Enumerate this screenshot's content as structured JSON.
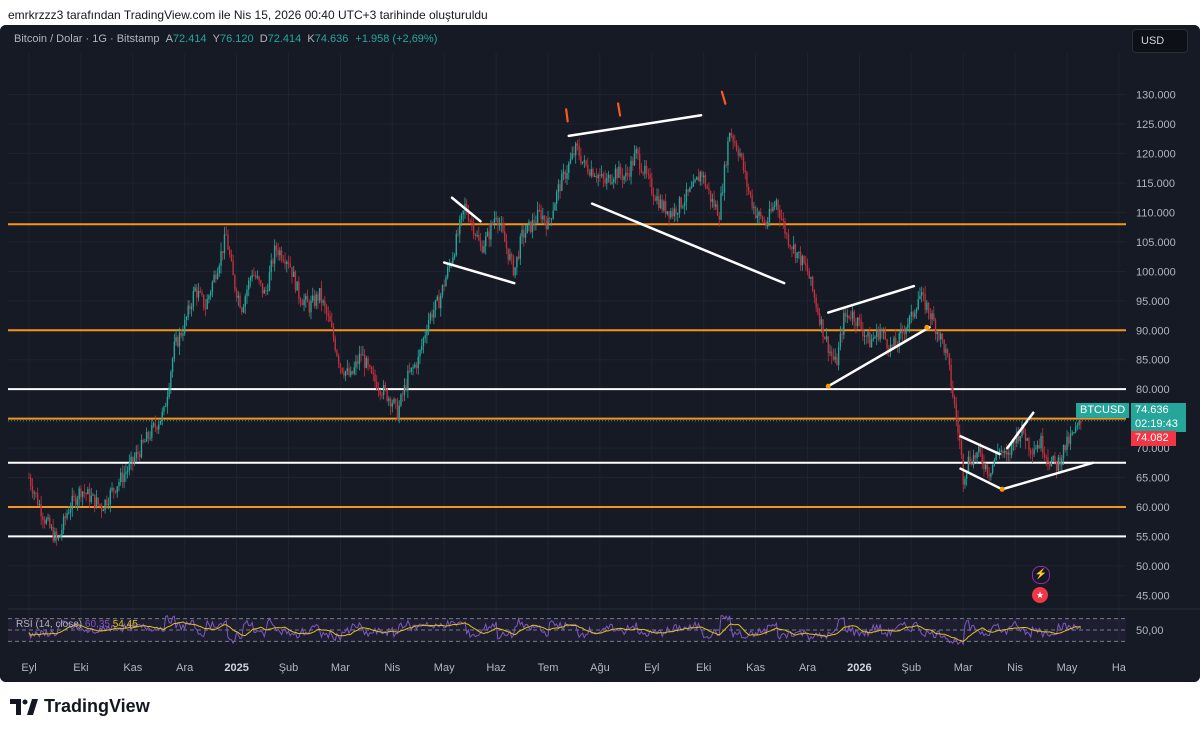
{
  "header": {
    "attribution": "emrkrzzz3 tarafından TradingView.com ile Nis 15, 2026 00:40 UTC+3 tarihinde oluşturuldu"
  },
  "legend": {
    "symbol": "Bitcoin / Dolar · 1G · Bitstamp",
    "open_label": "A",
    "open": "72.414",
    "high_label": "Y",
    "high": "76.120",
    "low_label": "D",
    "low": "72.414",
    "close_label": "K",
    "close": "74.636",
    "change": "+1.958 (+2,69%)"
  },
  "currency_button": "USD",
  "price_tags": {
    "symbol": "BTCUSD",
    "last": "74.636",
    "countdown": "02:19:43",
    "secondary": "74.082"
  },
  "rsi": {
    "label": "RSI (14, close)",
    "value_a": "60,35",
    "value_b": "54,45",
    "axis_label": "50,00"
  },
  "footer": {
    "brand": "TradingView"
  },
  "colors": {
    "background": "#161a25",
    "up": "#26a69a",
    "down": "#c2313d",
    "orange_line": "#f7931a",
    "white_line": "#ffffff",
    "rsi_line": "#7e57c2",
    "rsi_ma": "#e0c21a"
  },
  "chart_data": {
    "type": "candlestick",
    "y_axis_ticks": [
      "130.000",
      "125.000",
      "120.000",
      "115.000",
      "110.000",
      "105.000",
      "100.000",
      "95.000",
      "90.000",
      "85.000",
      "80.000",
      "75.000",
      "70.000",
      "65.000",
      "60.000",
      "55.000",
      "50.000",
      "45.000"
    ],
    "x_axis_ticks": [
      "Eyl",
      "Eki",
      "Kas",
      "Ara",
      "2025",
      "Şub",
      "Mar",
      "Nis",
      "May",
      "Haz",
      "Tem",
      "Ağu",
      "Eyl",
      "Eki",
      "Kas",
      "Ara",
      "2026",
      "Şub",
      "Mar",
      "Nis",
      "May",
      "Ha"
    ],
    "ylim": [
      42000,
      133000
    ],
    "horizontal_levels": [
      {
        "price": 108000,
        "color": "orange"
      },
      {
        "price": 90000,
        "color": "orange"
      },
      {
        "price": 80000,
        "color": "white"
      },
      {
        "price": 75000,
        "color": "orange"
      },
      {
        "price": 67500,
        "color": "white"
      },
      {
        "price": 60000,
        "color": "orange"
      },
      {
        "price": 55000,
        "color": "white"
      }
    ],
    "price_path": [
      [
        0,
        65000
      ],
      [
        0.3,
        58000
      ],
      [
        0.55,
        54000
      ],
      [
        0.75,
        59500
      ],
      [
        1.0,
        63000
      ],
      [
        1.4,
        60000
      ],
      [
        1.7,
        64000
      ],
      [
        1.95,
        67000
      ],
      [
        2.3,
        72000
      ],
      [
        2.6,
        76000
      ],
      [
        2.8,
        87000
      ],
      [
        3.0,
        91000
      ],
      [
        3.2,
        97000
      ],
      [
        3.4,
        94000
      ],
      [
        3.6,
        100000
      ],
      [
        3.8,
        106000
      ],
      [
        3.95,
        98000
      ],
      [
        4.1,
        94000
      ],
      [
        4.3,
        100000
      ],
      [
        4.55,
        96000
      ],
      [
        4.75,
        104000
      ],
      [
        5.0,
        102000
      ],
      [
        5.2,
        96000
      ],
      [
        5.4,
        94000
      ],
      [
        5.6,
        96000
      ],
      [
        5.8,
        91000
      ],
      [
        6.0,
        84000
      ],
      [
        6.2,
        82000
      ],
      [
        6.4,
        86000
      ],
      [
        6.6,
        82000
      ],
      [
        6.8,
        80000
      ],
      [
        7.0,
        78000
      ],
      [
        7.1,
        76000
      ],
      [
        7.3,
        82000
      ],
      [
        7.5,
        85000
      ],
      [
        7.7,
        92000
      ],
      [
        7.9,
        95000
      ],
      [
        8.0,
        98000
      ],
      [
        8.2,
        104000
      ],
      [
        8.4,
        111000
      ],
      [
        8.55,
        108000
      ],
      [
        8.7,
        104000
      ],
      [
        8.85,
        106000
      ],
      [
        9.0,
        110000
      ],
      [
        9.2,
        104000
      ],
      [
        9.35,
        100000
      ],
      [
        9.5,
        106000
      ],
      [
        9.7,
        108000
      ],
      [
        9.85,
        110000
      ],
      [
        10.0,
        108000
      ],
      [
        10.2,
        114000
      ],
      [
        10.4,
        118000
      ],
      [
        10.55,
        121000
      ],
      [
        10.7,
        118000
      ],
      [
        10.9,
        117000
      ],
      [
        11.1,
        115000
      ],
      [
        11.3,
        117000
      ],
      [
        11.5,
        116000
      ],
      [
        11.7,
        120000
      ],
      [
        11.85,
        117000
      ],
      [
        12.0,
        114000
      ],
      [
        12.2,
        111000
      ],
      [
        12.4,
        110000
      ],
      [
        12.6,
        112000
      ],
      [
        12.8,
        114000
      ],
      [
        12.95,
        117000
      ],
      [
        13.15,
        112000
      ],
      [
        13.3,
        110000
      ],
      [
        13.5,
        124000
      ],
      [
        13.7,
        120000
      ],
      [
        13.85,
        114000
      ],
      [
        14.0,
        110000
      ],
      [
        14.2,
        108000
      ],
      [
        14.4,
        112000
      ],
      [
        14.6,
        106000
      ],
      [
        14.8,
        103000
      ],
      [
        15.0,
        100000
      ],
      [
        15.15,
        95000
      ],
      [
        15.3,
        90000
      ],
      [
        15.45,
        86000
      ],
      [
        15.55,
        84000
      ],
      [
        15.7,
        92000
      ],
      [
        15.85,
        93000
      ],
      [
        16.0,
        91000
      ],
      [
        16.2,
        88000
      ],
      [
        16.4,
        90000
      ],
      [
        16.6,
        87000
      ],
      [
        16.75,
        88000
      ],
      [
        16.9,
        91000
      ],
      [
        17.0,
        92000
      ],
      [
        17.15,
        96000
      ],
      [
        17.3,
        94000
      ],
      [
        17.45,
        91000
      ],
      [
        17.6,
        88000
      ],
      [
        17.7,
        85000
      ],
      [
        17.85,
        76000
      ],
      [
        17.95,
        70000
      ],
      [
        18.0,
        65000
      ],
      [
        18.1,
        68000
      ],
      [
        18.3,
        69000
      ],
      [
        18.5,
        66000
      ],
      [
        18.7,
        70000
      ],
      [
        18.85,
        68000
      ],
      [
        19.0,
        72000
      ],
      [
        19.15,
        73000
      ],
      [
        19.3,
        70000
      ],
      [
        19.5,
        71000
      ],
      [
        19.65,
        68000
      ],
      [
        19.8,
        67000
      ],
      [
        19.95,
        70000
      ],
      [
        20.1,
        72000
      ],
      [
        20.3,
        74636
      ]
    ],
    "rsi_ylim": [
      20,
      80
    ],
    "rsi_levels": [
      70,
      50,
      30
    ]
  }
}
